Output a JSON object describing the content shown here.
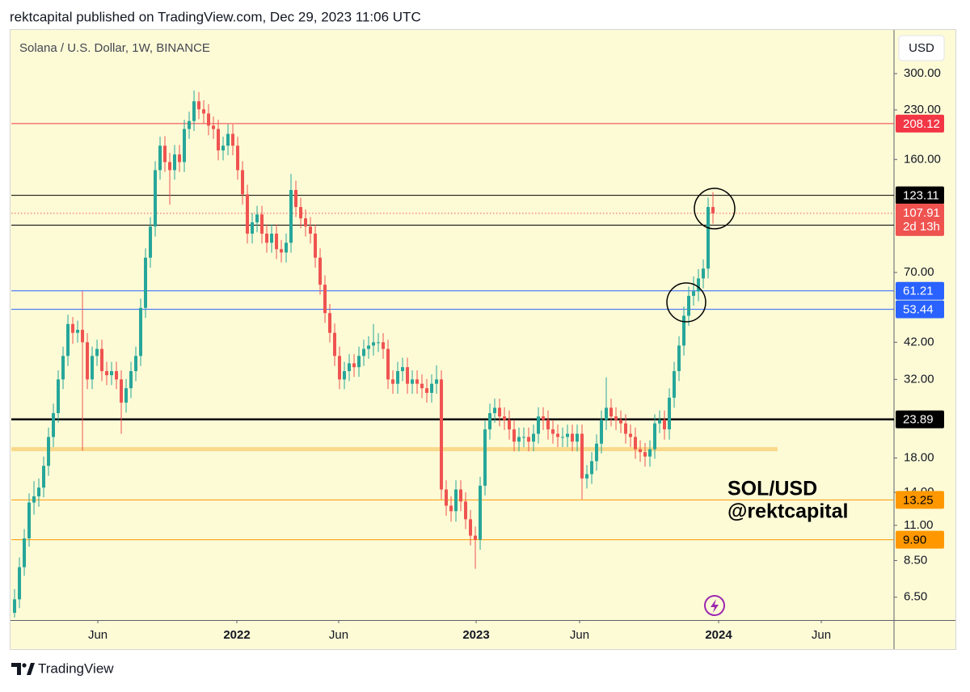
{
  "header": "rektcapital published on TradingView.com, Dec 29, 2023 11:06 UTC",
  "footer": "TradingView",
  "chart_data": {
    "type": "candlestick",
    "title": "Solana / U.S. Dollar, 1W, BINANCE",
    "currency": "USD",
    "log_scale": true,
    "grid": false,
    "up_color": "#26a69a",
    "down_color": "#ef5350",
    "ylim": [
      5.5,
      413
    ],
    "yticks": [
      {
        "value": 300,
        "label": "300.00"
      },
      {
        "value": 230,
        "label": "230.00"
      },
      {
        "value": 160,
        "label": "160.00"
      },
      {
        "value": 70,
        "label": "70.00"
      },
      {
        "value": 42,
        "label": "42.00"
      },
      {
        "value": 32,
        "label": "32.00"
      },
      {
        "value": 18,
        "label": "18.00"
      },
      {
        "value": 14,
        "label": "14.00"
      },
      {
        "value": 11,
        "label": "11.00"
      },
      {
        "value": 8.5,
        "label": "8.50"
      },
      {
        "value": 6.5,
        "label": "6.50"
      }
    ],
    "xlim": [
      -0.67,
      181.33
    ],
    "xticks": [
      {
        "value": 17.17,
        "label": "Jun"
      },
      {
        "value": 45.83,
        "label": "2022"
      },
      {
        "value": 66.83,
        "label": "Jun"
      },
      {
        "value": 95.17,
        "label": "2023"
      },
      {
        "value": 116.5,
        "label": "Jun"
      },
      {
        "value": 145.17,
        "label": "2024"
      },
      {
        "value": 166.33,
        "label": "Jun"
      }
    ],
    "countdown": "2d 13h",
    "annotations": [
      "SOL/USD",
      "@rektcapital"
    ],
    "levels": [
      {
        "value": 208.12,
        "color": "#f23645",
        "label_color": "#ffffff",
        "line_width": 1
      },
      {
        "value": 123.11,
        "color": "#000000",
        "label_color": "#ffffff",
        "line_width": 1
      },
      {
        "value": 98.98,
        "color": "#000000",
        "label_color": "#ffffff",
        "line_width": 1
      },
      {
        "value": 61.21,
        "color": "#2962ff",
        "label_color": "#ffffff",
        "line_width": 1
      },
      {
        "value": 53.44,
        "color": "#2962ff",
        "label_color": "#ffffff",
        "line_width": 1
      },
      {
        "value": 23.89,
        "color": "#000000",
        "label_color": "#ffffff",
        "line_width": 2.5
      },
      {
        "value": 19.2,
        "color": "#f9d98a",
        "line_width": 5,
        "style": "band"
      },
      {
        "value": 13.25,
        "color": "#ff9800",
        "label_color": "#000000",
        "line_width": 1
      },
      {
        "value": 9.9,
        "label": "9.90",
        "color": "#ff9800",
        "label_color": "#000000",
        "line_width": 1
      }
    ],
    "candles": [
      [
        5.8,
        6.9,
        5.6,
        6.4
      ],
      [
        6.4,
        8.7,
        6.0,
        8.1
      ],
      [
        8.1,
        10.7,
        7.6,
        10
      ],
      [
        10,
        13.9,
        9.4,
        13
      ],
      [
        13,
        15.2,
        11.9,
        13.6
      ],
      [
        13.6,
        15.5,
        12.6,
        14.5
      ],
      [
        14.5,
        18.2,
        13.5,
        17
      ],
      [
        17,
        22.5,
        15.8,
        21
      ],
      [
        21,
        26.8,
        19.5,
        25
      ],
      [
        25,
        34.2,
        23.3,
        32
      ],
      [
        32,
        40.7,
        29.8,
        38
      ],
      [
        38,
        51.4,
        35.3,
        48
      ],
      [
        48,
        50.5,
        41.5,
        45
      ],
      [
        45,
        49.2,
        41.9,
        46
      ],
      [
        46,
        61,
        19,
        42
      ],
      [
        42,
        44.9,
        29.8,
        32
      ],
      [
        32,
        40.7,
        29.8,
        38
      ],
      [
        38,
        42.8,
        35.3,
        40
      ],
      [
        40,
        42.8,
        31.6,
        34
      ],
      [
        34,
        36.4,
        30.7,
        33
      ],
      [
        33,
        36.4,
        30.7,
        34
      ],
      [
        34,
        36.4,
        29.8,
        32
      ],
      [
        32,
        34.2,
        21.5,
        27
      ],
      [
        27,
        32.1,
        25.1,
        30
      ],
      [
        30,
        36.4,
        27.9,
        34
      ],
      [
        34,
        40.7,
        31.6,
        38
      ],
      [
        38,
        57.8,
        35.3,
        54
      ],
      [
        54,
        83.5,
        50.2,
        78
      ],
      [
        78,
        105,
        72.5,
        98
      ],
      [
        98,
        158,
        91,
        148
      ],
      [
        148,
        189,
        138,
        177
      ],
      [
        177,
        190,
        146,
        157
      ],
      [
        157,
        168,
        115,
        148
      ],
      [
        148,
        178,
        138,
        166
      ],
      [
        166,
        178,
        146,
        157
      ],
      [
        157,
        214,
        146,
        200
      ],
      [
        200,
        227,
        186,
        212
      ],
      [
        212,
        265,
        197,
        245
      ],
      [
        245,
        262,
        215,
        231
      ],
      [
        231,
        247,
        208,
        224
      ],
      [
        224,
        240,
        191,
        205
      ],
      [
        205,
        219,
        186,
        200
      ],
      [
        200,
        214,
        159,
        171
      ],
      [
        171,
        189,
        159,
        177
      ],
      [
        177,
        207,
        165,
        193
      ],
      [
        193,
        207,
        165,
        177
      ],
      [
        177,
        189,
        138,
        148
      ],
      [
        148,
        158,
        115,
        124
      ],
      [
        124,
        133,
        86.5,
        93
      ],
      [
        93,
        108,
        86.5,
        101
      ],
      [
        101,
        114,
        93.9,
        107
      ],
      [
        107,
        114,
        86.5,
        93
      ],
      [
        93,
        99.5,
        80.9,
        87
      ],
      [
        87,
        99.5,
        80.9,
        93
      ],
      [
        93,
        99.5,
        77.2,
        83
      ],
      [
        83,
        88.8,
        75.3,
        81
      ],
      [
        81,
        93.1,
        75.3,
        87
      ],
      [
        87,
        144,
        80.9,
        128
      ],
      [
        128,
        137,
        105,
        113
      ],
      [
        113,
        121,
        96.7,
        104
      ],
      [
        104,
        111,
        91.1,
        98
      ],
      [
        98,
        105,
        86.5,
        93
      ],
      [
        93,
        99.5,
        72.5,
        78
      ],
      [
        78,
        83.5,
        59.5,
        64
      ],
      [
        64,
        68.5,
        48.4,
        52
      ],
      [
        52,
        55.6,
        41.9,
        45
      ],
      [
        45,
        48.2,
        35.3,
        38
      ],
      [
        38,
        40.7,
        29.8,
        32
      ],
      [
        32,
        36.4,
        29.8,
        34
      ],
      [
        34,
        38.5,
        31.6,
        36
      ],
      [
        36,
        38.5,
        32.6,
        35
      ],
      [
        35,
        40.7,
        32.6,
        38
      ],
      [
        38,
        42.8,
        35.3,
        40
      ],
      [
        40,
        43.9,
        37.2,
        41
      ],
      [
        41,
        48,
        38.1,
        42
      ],
      [
        42,
        44.9,
        39.1,
        42
      ],
      [
        42,
        44.9,
        37.2,
        40
      ],
      [
        40,
        42.8,
        29.8,
        32
      ],
      [
        32,
        34.2,
        28.8,
        31
      ],
      [
        31,
        36.4,
        28.8,
        34
      ],
      [
        34,
        37.5,
        31.6,
        35
      ],
      [
        35,
        37.5,
        28.8,
        31
      ],
      [
        31,
        34.2,
        28.8,
        32
      ],
      [
        32,
        34.2,
        28.8,
        31
      ],
      [
        31,
        33.2,
        27.9,
        30
      ],
      [
        30,
        32.1,
        27,
        29
      ],
      [
        29,
        33.2,
        27,
        31
      ],
      [
        31,
        35.5,
        28.8,
        32
      ],
      [
        32,
        34.2,
        13.3,
        14.3
      ],
      [
        14.3,
        15.3,
        11.8,
        12.7
      ],
      [
        12.7,
        13.6,
        11.3,
        12.2
      ],
      [
        12.2,
        15.3,
        11.3,
        14.3
      ],
      [
        14.3,
        15.3,
        12.2,
        13.1
      ],
      [
        13.1,
        14,
        10.7,
        11.5
      ],
      [
        11.5,
        12.3,
        9.5,
        10.2
      ],
      [
        10.2,
        10.9,
        8,
        9.9
      ],
      [
        9.9,
        15.7,
        9.2,
        14.7
      ],
      [
        14.7,
        23.8,
        13.7,
        22.2
      ],
      [
        22.2,
        26.8,
        20.6,
        25
      ],
      [
        25,
        27.8,
        23.3,
        26
      ],
      [
        26,
        27.8,
        22.7,
        24.4
      ],
      [
        24.4,
        26.1,
        22.1,
        23.8
      ],
      [
        23.8,
        25.5,
        20.6,
        22.2
      ],
      [
        22.2,
        23.8,
        18.9,
        20.3
      ],
      [
        20.3,
        22.5,
        18.9,
        21
      ],
      [
        21,
        22.5,
        19.5,
        21
      ],
      [
        21,
        22.5,
        18.9,
        20.3
      ],
      [
        20.3,
        23,
        18.9,
        21.5
      ],
      [
        21.5,
        26.1,
        20,
        24.4
      ],
      [
        24.4,
        26.1,
        22.1,
        23.8
      ],
      [
        23.8,
        25.5,
        20.6,
        22.2
      ],
      [
        22.2,
        23.8,
        20,
        21.5
      ],
      [
        21.5,
        23,
        19.5,
        21
      ],
      [
        21,
        22.5,
        19.5,
        21
      ],
      [
        21,
        23,
        19.5,
        21.5
      ],
      [
        21.5,
        23,
        18.9,
        20.3
      ],
      [
        20.3,
        23,
        18.9,
        21.5
      ],
      [
        21.5,
        23,
        13.3,
        15.5
      ],
      [
        15.5,
        17.1,
        14.4,
        16
      ],
      [
        16,
        18.8,
        14.9,
        17.6
      ],
      [
        17.6,
        21.4,
        16.4,
        20
      ],
      [
        20,
        25.5,
        18.6,
        23.8
      ],
      [
        23.8,
        32.5,
        22.1,
        26
      ],
      [
        26,
        27.8,
        22.7,
        24.4
      ],
      [
        24.4,
        26.1,
        22.1,
        23.8
      ],
      [
        23.8,
        25.5,
        21.6,
        23.2
      ],
      [
        23.2,
        24.8,
        20,
        21.5
      ],
      [
        21.5,
        23,
        19.5,
        21
      ],
      [
        21,
        22.5,
        17.9,
        19.2
      ],
      [
        19.2,
        20.5,
        17.5,
        18.8
      ],
      [
        18.8,
        20.1,
        16.9,
        18.2
      ],
      [
        18.2,
        20.5,
        16.9,
        19.2
      ],
      [
        19.2,
        24.8,
        17.9,
        23.2
      ],
      [
        23.2,
        25.5,
        21.6,
        23.8
      ],
      [
        23.8,
        25.5,
        20.6,
        22.2
      ],
      [
        22.2,
        30,
        20.6,
        28
      ],
      [
        28,
        36.4,
        26,
        34
      ],
      [
        34,
        43.9,
        31.6,
        41
      ],
      [
        41,
        54.6,
        38.1,
        51
      ],
      [
        51,
        63.1,
        47.4,
        59
      ],
      [
        59,
        68,
        54.9,
        61
      ],
      [
        61,
        71.7,
        56.7,
        67
      ],
      [
        67,
        77,
        62.3,
        72
      ],
      [
        72,
        121,
        67,
        113
      ],
      [
        113,
        126,
        100,
        107.91
      ]
    ]
  }
}
